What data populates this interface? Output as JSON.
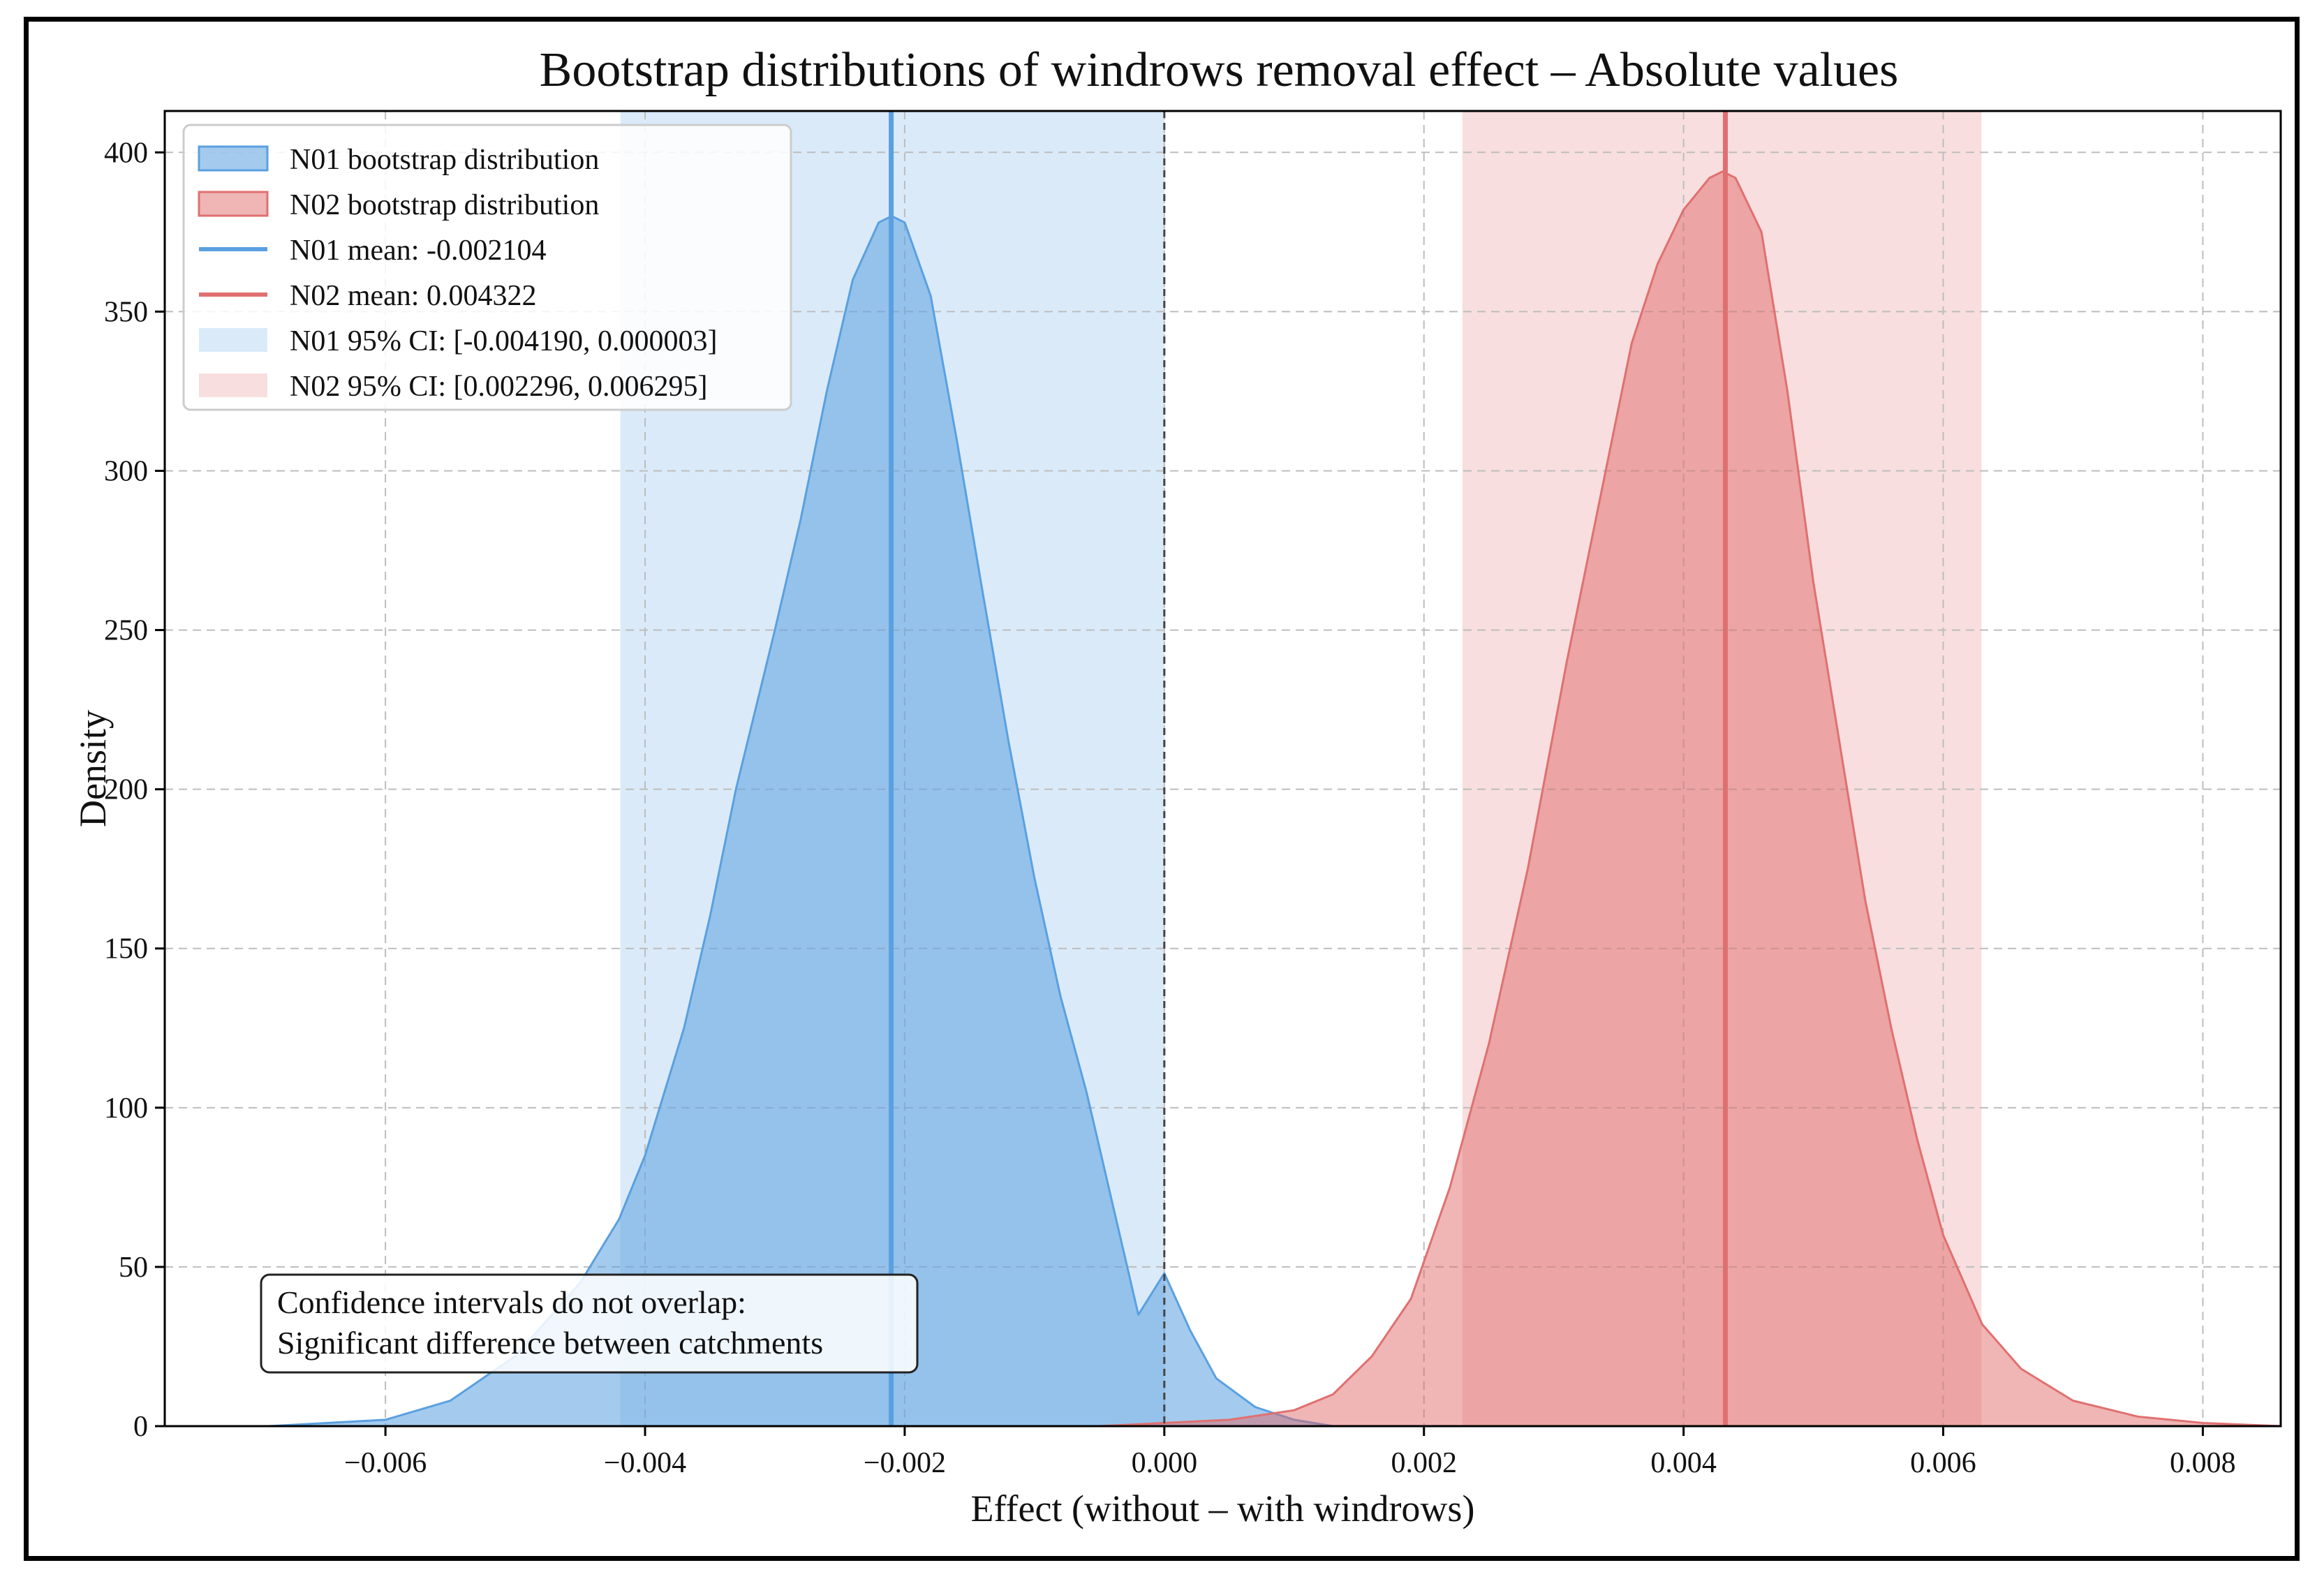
{
  "chart_data": {
    "type": "area",
    "title": "Bootstrap distributions of windrows removal effect – Absolute values",
    "xlabel": "Effect (without – with windrows)",
    "ylabel": "Density",
    "xlim": [
      -0.0077,
      0.0086
    ],
    "ylim": [
      0,
      413
    ],
    "xticks": [
      -0.006,
      -0.004,
      -0.002,
      0.0,
      0.002,
      0.004,
      0.006,
      0.008
    ],
    "xtick_labels": [
      "−0.006",
      "−0.004",
      "−0.002",
      "0.000",
      "0.002",
      "0.004",
      "0.006",
      "0.008"
    ],
    "yticks": [
      0,
      50,
      100,
      150,
      200,
      250,
      300,
      350,
      400
    ],
    "ytick_labels": [
      "0",
      "50",
      "100",
      "150",
      "200",
      "250",
      "300",
      "350",
      "400"
    ],
    "grid": true,
    "zero_line": 0.0,
    "series": [
      {
        "name": "N01 bootstrap distribution",
        "color": "#5aa0e0",
        "mean": -0.002104,
        "mean_label": "N01 mean: -0.002104",
        "ci": [
          -0.00419,
          3e-06
        ],
        "ci_label": "N01 95% CI: [-0.004190, 0.000003]",
        "x": [
          -0.0069,
          -0.006,
          -0.0055,
          -0.005,
          -0.0045,
          -0.0042,
          -0.004,
          -0.0037,
          -0.0035,
          -0.0033,
          -0.003,
          -0.0028,
          -0.0026,
          -0.0024,
          -0.0022,
          -0.0021,
          -0.002,
          -0.0018,
          -0.0016,
          -0.0014,
          -0.0012,
          -0.001,
          -0.0008,
          -0.0006,
          -0.0004,
          -0.0002,
          0.0,
          0.0002,
          0.0004,
          0.0007,
          0.001,
          0.0013
        ],
        "y": [
          0,
          2,
          8,
          22,
          45,
          65,
          85,
          125,
          160,
          200,
          250,
          285,
          325,
          360,
          378,
          380,
          378,
          355,
          310,
          262,
          215,
          172,
          135,
          105,
          70,
          35,
          48,
          30,
          15,
          6,
          2,
          0
        ]
      },
      {
        "name": "N02 bootstrap distribution",
        "color": "#e07070",
        "mean": 0.004322,
        "mean_label": "N02 mean: 0.004322",
        "ci": [
          0.002296,
          0.006295
        ],
        "ci_label": "N02 95% CI: [0.002296, 0.006295]",
        "x": [
          -0.0005,
          0.0005,
          0.001,
          0.0013,
          0.0016,
          0.0019,
          0.0022,
          0.0025,
          0.0028,
          0.0031,
          0.0034,
          0.0036,
          0.0038,
          0.004,
          0.0042,
          0.0043,
          0.0044,
          0.0046,
          0.0048,
          0.005,
          0.0052,
          0.0054,
          0.0056,
          0.0058,
          0.006,
          0.0063,
          0.0066,
          0.007,
          0.0075,
          0.008,
          0.0086
        ],
        "y": [
          0,
          2,
          5,
          10,
          22,
          40,
          75,
          120,
          175,
          240,
          300,
          340,
          365,
          382,
          392,
          394,
          392,
          375,
          325,
          265,
          215,
          165,
          125,
          90,
          60,
          32,
          18,
          8,
          3,
          1,
          0
        ]
      }
    ],
    "annotation": [
      "Confidence intervals do not overlap:",
      "Significant difference between catchments"
    ],
    "legend_position": "top-left"
  }
}
